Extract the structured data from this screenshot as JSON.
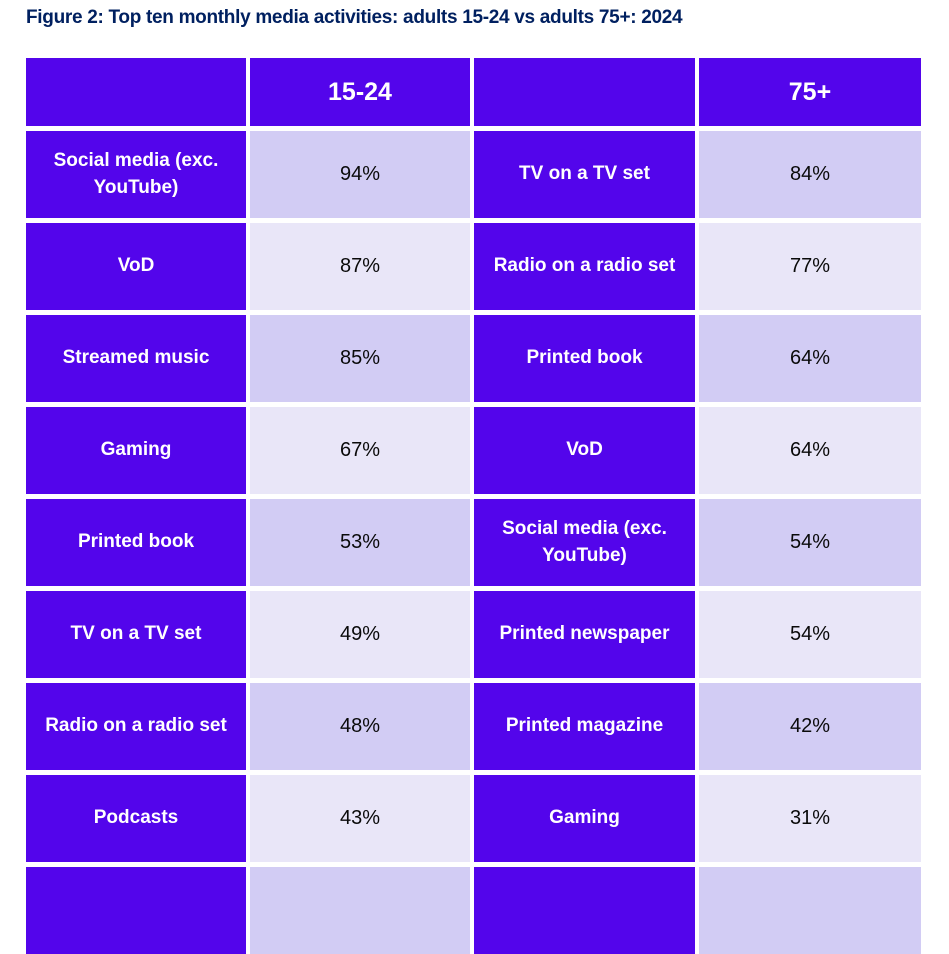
{
  "figure": {
    "title": "Figure 2: Top ten monthly media activities: adults 15-24 vs adults 75+: 2024"
  },
  "colors": {
    "title_navy": "#002060",
    "cell_purple": "#5305EB",
    "value_row_dark_lavender": "#D2CCF4",
    "value_row_light_lavender": "#E9E6F8",
    "label_text": "#FFFFFF",
    "value_text": "#0A0A0A",
    "background": "#FFFFFF"
  },
  "table": {
    "headers": [
      "",
      "15-24",
      "",
      "75+"
    ],
    "rows": [
      {
        "left_label": "Social media (exc. YouTube)",
        "left_value": "94%",
        "right_label": "TV on a TV set",
        "right_value": "84%"
      },
      {
        "left_label": "VoD",
        "left_value": "87%",
        "right_label": "Radio on a radio set",
        "right_value": "77%"
      },
      {
        "left_label": "Streamed music",
        "left_value": "85%",
        "right_label": "Printed book",
        "right_value": "64%"
      },
      {
        "left_label": "Gaming",
        "left_value": "67%",
        "right_label": "VoD",
        "right_value": "64%"
      },
      {
        "left_label": "Printed book",
        "left_value": "53%",
        "right_label": "Social media (exc. YouTube)",
        "right_value": "54%"
      },
      {
        "left_label": "TV on a TV set",
        "left_value": "49%",
        "right_label": "Printed newspaper",
        "right_value": "54%"
      },
      {
        "left_label": "Radio on a radio set",
        "left_value": "48%",
        "right_label": "Printed magazine",
        "right_value": "42%"
      },
      {
        "left_label": "Podcasts",
        "left_value": "43%",
        "right_label": "Gaming",
        "right_value": "31%"
      },
      {
        "left_label": "",
        "left_value": "",
        "right_label": "",
        "right_value": ""
      }
    ],
    "partial_ninth_row_cropped_at_bottom": true
  },
  "chart_data": {
    "type": "table",
    "title": "Figure 2: Top ten monthly media activities: adults 15-24 vs adults 75+: 2024",
    "unit": "%",
    "series": [
      {
        "name": "15-24",
        "categories": [
          "Social media (exc. YouTube)",
          "VoD",
          "Streamed music",
          "Gaming",
          "Printed book",
          "TV on a TV set",
          "Radio on a radio set",
          "Podcasts"
        ],
        "values": [
          94,
          87,
          85,
          67,
          53,
          49,
          48,
          43
        ]
      },
      {
        "name": "75+",
        "categories": [
          "TV on a TV set",
          "Radio on a radio set",
          "Printed book",
          "VoD",
          "Social media (exc. YouTube)",
          "Printed newspaper",
          "Printed magazine",
          "Gaming"
        ],
        "values": [
          84,
          77,
          64,
          64,
          54,
          54,
          42,
          31
        ]
      }
    ],
    "layout": "two side-by-side ranked label/value column pairs; purple label cells, alternating lavender value cells; rows 9-10 cropped out of view"
  }
}
